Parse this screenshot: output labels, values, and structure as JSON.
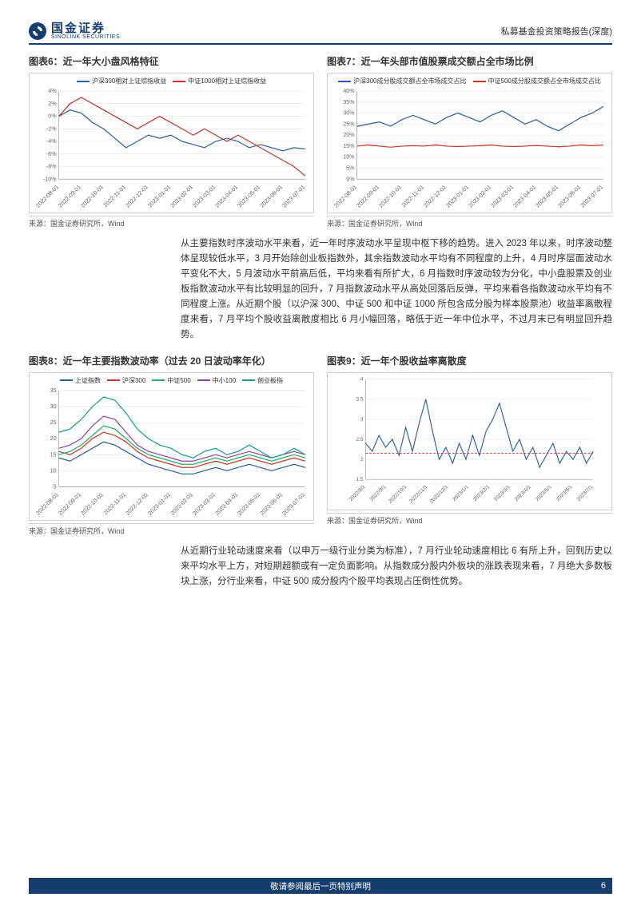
{
  "brand": {
    "name": "国金证券",
    "sub": "SINOLINK SECURITIES",
    "color": "#153e6e",
    "logo_bg": "#153e6e"
  },
  "header": {
    "right_text": "私募基金投资策略报告(深度)",
    "border_color": "#153e6e"
  },
  "paragraph1": "从主要指数时序波动水平来看，近一年时序波动水平呈现中枢下移的趋势。进入 2023 年以来，时序波动整体呈现较低水平，3 月开始除创业板指数外，其余指数波动水平均有不同程度的上升，4 月时序层面波动水平变化不大，5 月波动水平前高后低，平均来看有所扩大，6 月指数时序波动较为分化，中小盘股票及创业板指数波动水平有比较明显的回升，7 月指数波动水平从高处回落后反弹，平均来看各指数波动水平均有不同程度上涨。从近期个股（以沪深 300、中证 500 和中证 1000 所包含成分股为样本股票池）收益率离散程度来看，7 月平均个股收益离散度相比 6 月小幅回落，略低于近一年中位水平，不过月末已有明显回升趋势。",
  "paragraph2": "从近期行业轮动速度来看（以申万一级行业分类为标准），7 月行业轮动速度相比 6 有所上升，回到历史以来平均水平上方，对短期超额或有一定负面影响。从指数成分股内外板块的涨跌表现来看，7 月绝大多数板块上涨，分行业来看，中证 500 成分股内个股平均表现占压倒性优势。",
  "source_text": "来源：国金证券研究所，Wind",
  "colors": {
    "blue": "#2d5ca6",
    "red": "#c0392b",
    "green": "#27ae60",
    "purple": "#8e44ad",
    "teal": "#16a085",
    "orange": "#e67e22",
    "grid": "#e0e0e0",
    "axis": "#999999",
    "dash": "#c0392b"
  },
  "chart6": {
    "title": "图表6：近一年大小盘风格特征",
    "legend": [
      {
        "label": "沪深300相对上证综指收益",
        "color": "#2d5ca6"
      },
      {
        "label": "中证1000相对上证综指收益",
        "color": "#c0392b"
      }
    ],
    "x_labels": [
      "2022-08-01",
      "2022-09-01",
      "2022-10-01",
      "2022-11-01",
      "2022-12-01",
      "2023-01-01",
      "2023-02-01",
      "2023-03-01",
      "2023-04-01",
      "2023-05-01",
      "2023-06-01",
      "2023-07-01"
    ],
    "y_ticks": [
      "-10%",
      "-8%",
      "-6%",
      "-4%",
      "-2%",
      "0%",
      "2%",
      "4%"
    ],
    "ylim": [
      -10,
      4
    ],
    "series": [
      {
        "color": "#2d5ca6",
        "data": [
          0,
          1,
          0.5,
          -1,
          -2,
          -3.5,
          -5,
          -4,
          -3,
          -3.5,
          -3,
          -4,
          -4.5,
          -5,
          -4,
          -3.5,
          -4,
          -5,
          -4.5,
          -5,
          -5.5,
          -5,
          -5.2
        ]
      },
      {
        "color": "#c0392b",
        "data": [
          0,
          2,
          3,
          2,
          1,
          0,
          -1,
          -2,
          -1,
          0,
          -1,
          -2,
          -3,
          -2,
          -3,
          -4,
          -3,
          -4,
          -5,
          -6,
          -7,
          -8,
          -9.5
        ]
      }
    ]
  },
  "chart7": {
    "title": "图表7：近一年头部市值股票成交额占全市场比例",
    "legend": [
      {
        "label": "沪深300成分股成交额占全市场成交占比",
        "color": "#2d5ca6"
      },
      {
        "label": "中证500成分股成交额占全市场成交占比",
        "color": "#c0392b"
      }
    ],
    "x_labels": [
      "2022-08-01",
      "2022-09-01",
      "2022-10-01",
      "2022-11-01",
      "2022-12-01",
      "2023-01-01",
      "2023-02-01",
      "2023-03-01",
      "2023-04-01",
      "2023-05-01",
      "2023-06-01",
      "2023-07-01"
    ],
    "y_ticks": [
      "0%",
      "5%",
      "10%",
      "15%",
      "20%",
      "25%",
      "30%",
      "35%",
      "40%"
    ],
    "ylim": [
      0,
      40
    ],
    "series": [
      {
        "color": "#2d5ca6",
        "data": [
          24,
          25,
          26,
          24,
          27,
          29,
          27,
          25,
          28,
          30,
          28,
          26,
          29,
          31,
          28,
          25,
          27,
          24,
          22,
          25,
          28,
          30,
          33
        ]
      },
      {
        "color": "#c0392b",
        "data": [
          15,
          15.5,
          15,
          14.5,
          15,
          15.2,
          15,
          15.5,
          15,
          14.8,
          15,
          15.2,
          15.5,
          15,
          14.8,
          15,
          15.3,
          15,
          14.7,
          15,
          15.5,
          15.2,
          15.5
        ]
      }
    ]
  },
  "chart8": {
    "title": "图表8：近一年主要指数波动率（过去 20 日波动率年化）",
    "legend": [
      {
        "label": "上证指数",
        "color": "#2d5ca6"
      },
      {
        "label": "沪深300",
        "color": "#c0392b"
      },
      {
        "label": "中证500",
        "color": "#27ae60"
      },
      {
        "label": "中小100",
        "color": "#8e44ad"
      },
      {
        "label": "创业板指",
        "color": "#16a085"
      }
    ],
    "x_labels": [
      "2022-08-01",
      "2022-09-01",
      "2022-10-01",
      "2022-11-01",
      "2022-12-01",
      "2023-01-01",
      "2023-02-01",
      "2023-03-01",
      "2023-04-01",
      "2023-05-01",
      "2023-06-01",
      "2023-07-01"
    ],
    "y_ticks": [
      "5",
      "10",
      "15",
      "20",
      "25",
      "30",
      "35"
    ],
    "ylim": [
      5,
      35
    ],
    "series": [
      {
        "color": "#2d5ca6",
        "data": [
          14,
          13,
          15,
          17,
          19,
          18,
          16,
          14,
          12,
          11,
          10,
          9,
          9,
          10,
          11,
          10,
          11,
          12,
          11,
          10,
          11,
          12,
          11
        ]
      },
      {
        "color": "#c0392b",
        "data": [
          16,
          15,
          17,
          20,
          22,
          21,
          19,
          16,
          14,
          13,
          12,
          11,
          11,
          12,
          13,
          12,
          13,
          14,
          13,
          12,
          13,
          14,
          13
        ]
      },
      {
        "color": "#27ae60",
        "data": [
          15,
          16,
          18,
          21,
          24,
          23,
          20,
          17,
          15,
          14,
          13,
          12,
          12,
          13,
          14,
          13,
          14,
          15,
          14,
          13,
          14,
          15,
          14
        ]
      },
      {
        "color": "#8e44ad",
        "data": [
          17,
          18,
          20,
          24,
          27,
          26,
          22,
          18,
          16,
          15,
          14,
          13,
          13,
          14,
          15,
          14,
          15,
          16,
          15,
          14,
          15,
          16,
          15
        ]
      },
      {
        "color": "#16a085",
        "data": [
          22,
          23,
          26,
          30,
          33,
          32,
          28,
          23,
          20,
          18,
          17,
          15,
          14,
          16,
          17,
          15,
          16,
          18,
          16,
          14,
          15,
          17,
          15
        ]
      }
    ]
  },
  "chart9": {
    "title": "图表9：近一年个股收益率离散度",
    "x_labels": [
      "2022/8/1",
      "2022/9/1",
      "2022/10/1",
      "2022/11/1",
      "2022/12/1",
      "2023/1/1",
      "2023/2/1",
      "2023/3/1",
      "2023/4/1",
      "2023/5/1",
      "2023/6/1",
      "2023/7/1"
    ],
    "y_ticks": [
      "1.5",
      "2",
      "2.5",
      "3",
      "3.5",
      "4"
    ],
    "ylim": [
      1.5,
      4
    ],
    "dash_y": 2.15,
    "series": [
      {
        "color": "#2d5ca6",
        "data": [
          2.4,
          2.2,
          2.6,
          2.3,
          2.5,
          2.1,
          2.8,
          2.2,
          2.9,
          3.5,
          2.7,
          2.0,
          2.3,
          1.9,
          2.4,
          2.0,
          2.6,
          2.1,
          2.7,
          3.0,
          3.4,
          2.8,
          2.2,
          2.5,
          2.0,
          2.3,
          1.8,
          2.1,
          2.4,
          1.9,
          2.2,
          2.0,
          2.3,
          1.9,
          2.2
        ]
      }
    ]
  },
  "footer": {
    "text": "敬请参阅最后一页特别声明",
    "page": "6",
    "bg": "#153e6e"
  }
}
